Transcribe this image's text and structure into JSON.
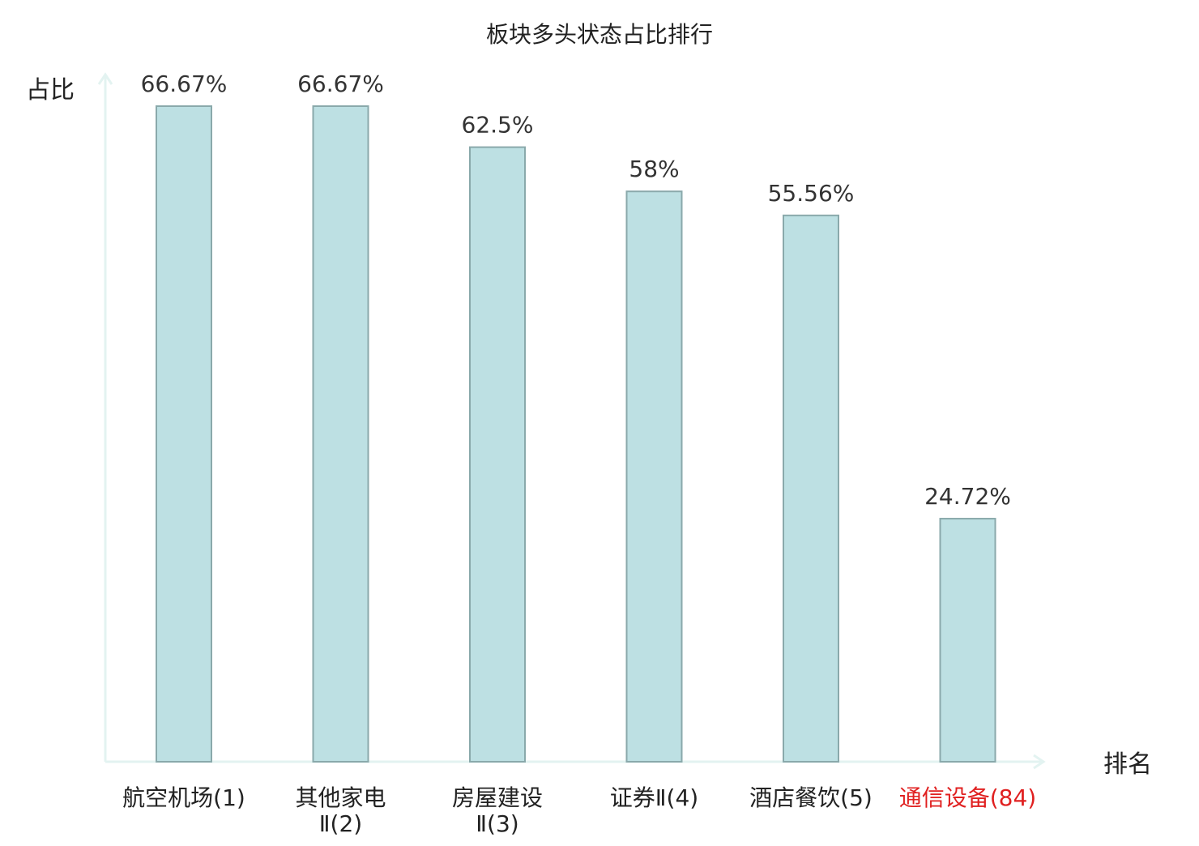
{
  "chart_data": {
    "type": "bar",
    "title": "板块多头状态占比排行",
    "ylabel": "占比",
    "xlabel": "排名",
    "ylim": [
      0,
      75
    ],
    "grid": false,
    "categories": [
      {
        "lines": [
          "航空机场(1)"
        ],
        "highlight": false
      },
      {
        "lines": [
          "其他家电",
          "Ⅱ(2)"
        ],
        "highlight": false
      },
      {
        "lines": [
          "房屋建设",
          "Ⅱ(3)"
        ],
        "highlight": false
      },
      {
        "lines": [
          "证券Ⅱ(4)"
        ],
        "highlight": false
      },
      {
        "lines": [
          "酒店餐饮(5)"
        ],
        "highlight": false
      },
      {
        "lines": [
          "通信设备(84)"
        ],
        "highlight": true
      }
    ],
    "values": [
      66.67,
      66.67,
      62.5,
      58,
      55.56,
      24.72
    ],
    "data_labels": [
      "66.67%",
      "66.67%",
      "62.5%",
      "58%",
      "55.56%",
      "24.72%"
    ]
  },
  "colors": {
    "bar_fill": "#bde0e3",
    "bar_stroke": "#8aa9ab",
    "axis": "#e3f3f1",
    "text": "#222222",
    "value_text": "#333333",
    "highlight_text": "#e02020"
  }
}
